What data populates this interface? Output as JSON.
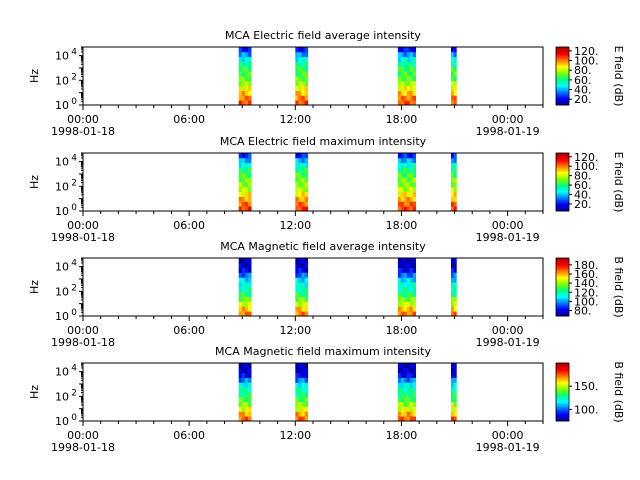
{
  "colormap": [
    "#00008f",
    "#0000ff",
    "#0080ff",
    "#00ffff",
    "#00ff80",
    "#80ff00",
    "#ffff00",
    "#ff8000",
    "#ff0000",
    "#b00000"
  ],
  "chart_data": [
    {
      "type": "heatmap",
      "title": "MCA  Electric field average intensity",
      "ylabel": "Hz",
      "yscale": "log",
      "yticks": [
        {
          "exp": "0",
          "v": 1
        },
        {
          "exp": "2",
          "v": 100
        },
        {
          "exp": "4",
          "v": 10000
        }
      ],
      "ylim": [
        1,
        50000
      ],
      "xlim": [
        "1998-01-18 00:00",
        "1998-01-19 02:00"
      ],
      "xticks": [
        {
          "time": "00:00",
          "date": "1998-01-18",
          "hour": 0
        },
        {
          "time": "06:00",
          "date": "",
          "hour": 6
        },
        {
          "time": "12:00",
          "date": "",
          "hour": 12
        },
        {
          "time": "18:00",
          "date": "",
          "hour": 18
        },
        {
          "time": "00:00",
          "date": "1998-01-19",
          "hour": 24
        }
      ],
      "colorbar": {
        "label": "E field (dB)",
        "ticks": [
          "20.",
          "40.",
          "60.",
          "80.",
          "100.",
          "120."
        ],
        "tick_values": [
          20,
          40,
          60,
          80,
          100,
          120
        ],
        "range": [
          8,
          128
        ]
      },
      "data_intervals_hours": [
        [
          8.8,
          9.5
        ],
        [
          12.0,
          12.7
        ],
        [
          17.8,
          18.8
        ],
        [
          20.8,
          21.1
        ]
      ],
      "profile_low_to_high": [
        0.82,
        0.78,
        0.72,
        0.66,
        0.58,
        0.52,
        0.5,
        0.48,
        0.42,
        0.34,
        0.24,
        0.12
      ]
    },
    {
      "type": "heatmap",
      "title": "MCA  Electric field maximum intensity",
      "ylabel": "Hz",
      "yscale": "log",
      "yticks": [
        {
          "exp": "0",
          "v": 1
        },
        {
          "exp": "2",
          "v": 100
        },
        {
          "exp": "4",
          "v": 10000
        }
      ],
      "ylim": [
        1,
        50000
      ],
      "xlim": [
        "1998-01-18 00:00",
        "1998-01-19 02:00"
      ],
      "xticks": [
        {
          "time": "00:00",
          "date": "1998-01-18",
          "hour": 0
        },
        {
          "time": "06:00",
          "date": "",
          "hour": 6
        },
        {
          "time": "12:00",
          "date": "",
          "hour": 12
        },
        {
          "time": "18:00",
          "date": "",
          "hour": 18
        },
        {
          "time": "00:00",
          "date": "1998-01-19",
          "hour": 24
        }
      ],
      "colorbar": {
        "label": "E field (dB)",
        "ticks": [
          "20.",
          "40.",
          "60.",
          "80.",
          "100.",
          "120."
        ],
        "tick_values": [
          20,
          40,
          60,
          80,
          100,
          120
        ],
        "range": [
          5,
          128
        ]
      },
      "data_intervals_hours": [
        [
          8.8,
          9.5
        ],
        [
          12.0,
          12.7
        ],
        [
          17.8,
          18.8
        ],
        [
          20.8,
          21.1
        ]
      ],
      "profile_low_to_high": [
        0.84,
        0.8,
        0.74,
        0.68,
        0.6,
        0.56,
        0.54,
        0.5,
        0.45,
        0.36,
        0.26,
        0.14
      ]
    },
    {
      "type": "heatmap",
      "title": "MCA  Magnetic field average intensity",
      "ylabel": "Hz",
      "yscale": "log",
      "yticks": [
        {
          "exp": "0",
          "v": 1
        },
        {
          "exp": "2",
          "v": 100
        },
        {
          "exp": "4",
          "v": 10000
        }
      ],
      "ylim": [
        1,
        50000
      ],
      "xlim": [
        "1998-01-18 00:00",
        "1998-01-19 02:00"
      ],
      "xticks": [
        {
          "time": "00:00",
          "date": "1998-01-18",
          "hour": 0
        },
        {
          "time": "06:00",
          "date": "",
          "hour": 6
        },
        {
          "time": "12:00",
          "date": "",
          "hour": 12
        },
        {
          "time": "18:00",
          "date": "",
          "hour": 18
        },
        {
          "time": "00:00",
          "date": "1998-01-19",
          "hour": 24
        }
      ],
      "colorbar": {
        "label": "B field (dB)",
        "ticks": [
          "80.",
          "100.",
          "120.",
          "140.",
          "160.",
          "180."
        ],
        "tick_values": [
          80,
          100,
          120,
          140,
          160,
          180
        ],
        "range": [
          68,
          195
        ]
      },
      "data_intervals_hours": [
        [
          8.8,
          9.5
        ],
        [
          12.0,
          12.7
        ],
        [
          17.8,
          18.8
        ],
        [
          20.8,
          21.1
        ]
      ],
      "profile_low_to_high": [
        0.78,
        0.72,
        0.62,
        0.54,
        0.46,
        0.4,
        0.36,
        0.3,
        0.2,
        0.1,
        0.06,
        0.04
      ]
    },
    {
      "type": "heatmap",
      "title": "MCA  Magnetic field maximum intensity",
      "ylabel": "Hz",
      "yscale": "log",
      "yticks": [
        {
          "exp": "0",
          "v": 1
        },
        {
          "exp": "2",
          "v": 100
        },
        {
          "exp": "4",
          "v": 10000
        }
      ],
      "ylim": [
        1,
        50000
      ],
      "xlim": [
        "1998-01-18 00:00",
        "1998-01-19 02:00"
      ],
      "xticks": [
        {
          "time": "00:00",
          "date": "1998-01-18",
          "hour": 0
        },
        {
          "time": "06:00",
          "date": "",
          "hour": 6
        },
        {
          "time": "12:00",
          "date": "",
          "hour": 12
        },
        {
          "time": "18:00",
          "date": "",
          "hour": 18
        },
        {
          "time": "00:00",
          "date": "1998-01-19",
          "hour": 24
        }
      ],
      "colorbar": {
        "label": "B field (dB)",
        "ticks": [
          "100.",
          "150."
        ],
        "tick_values": [
          100,
          150
        ],
        "range": [
          75,
          200
        ]
      },
      "data_intervals_hours": [
        [
          8.8,
          9.5
        ],
        [
          12.0,
          12.7
        ],
        [
          17.8,
          18.8
        ],
        [
          20.8,
          21.1
        ]
      ],
      "profile_low_to_high": [
        0.8,
        0.74,
        0.64,
        0.56,
        0.5,
        0.44,
        0.4,
        0.34,
        0.22,
        0.1,
        0.06,
        0.04
      ]
    }
  ]
}
